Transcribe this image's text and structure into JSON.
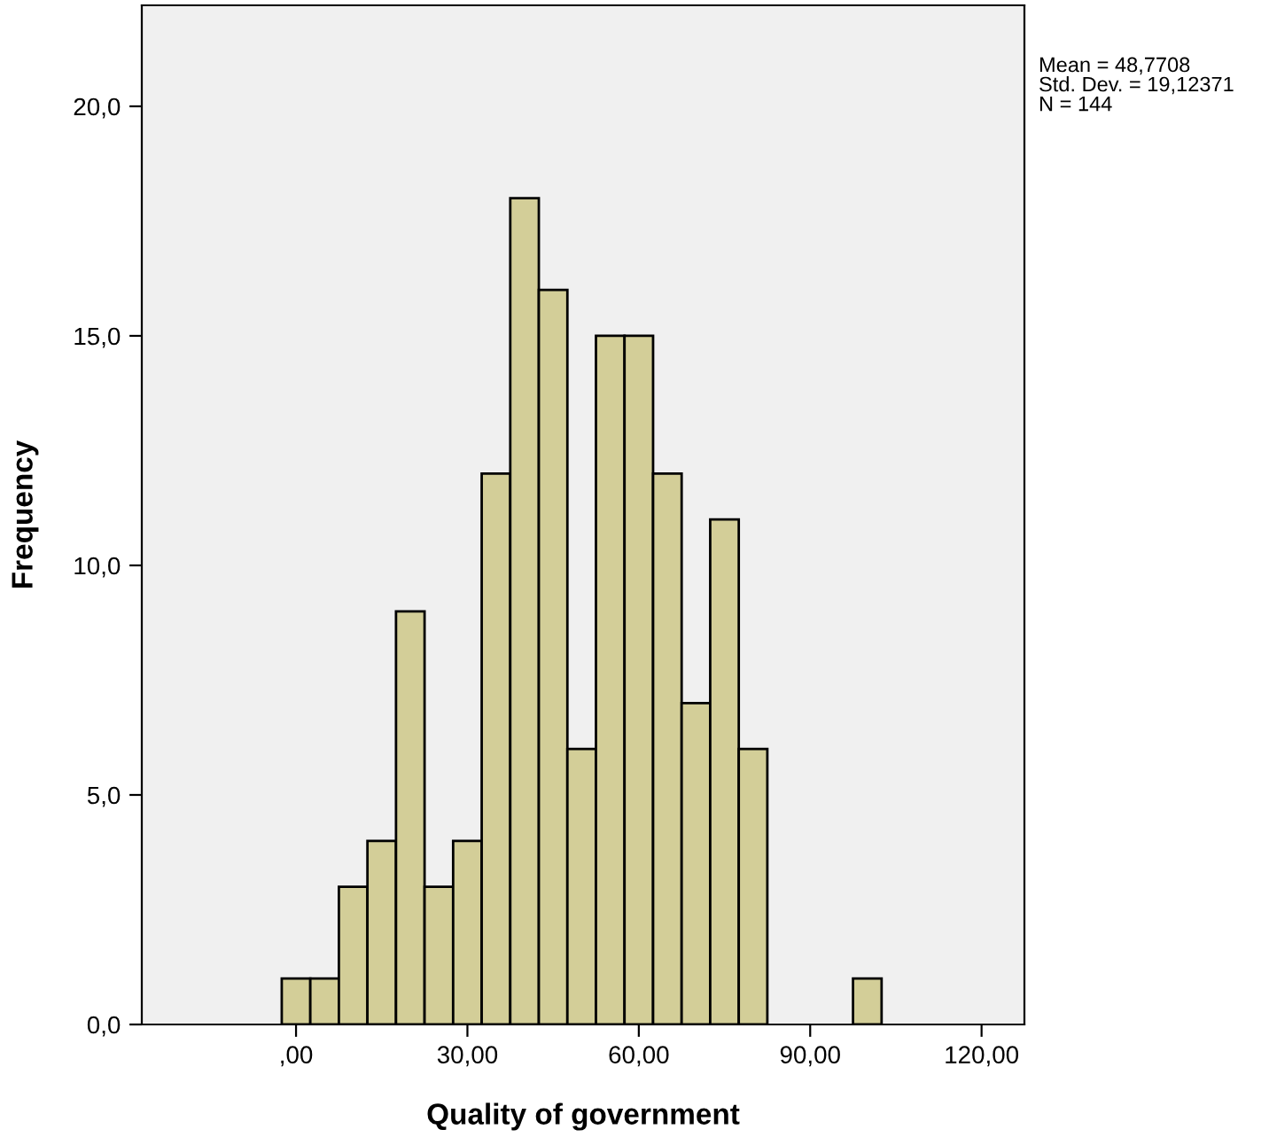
{
  "chart_data": {
    "type": "histogram",
    "xlabel": "Quality of government",
    "ylabel": "Frequency",
    "bins": [
      -2.5,
      2.5,
      7.5,
      12.5,
      17.5,
      22.5,
      27.5,
      32.5,
      37.5,
      42.5,
      47.5,
      52.5,
      57.5,
      62.5,
      67.5,
      72.5,
      77.5,
      82.5,
      87.5,
      92.5,
      97.5,
      102.5
    ],
    "values": [
      1,
      1,
      3,
      4,
      9,
      3,
      4,
      12,
      18,
      16,
      6,
      15,
      15,
      12,
      7,
      11,
      6,
      0,
      0,
      0,
      1
    ],
    "color": "#d3ce98",
    "xlim": [
      -27,
      127.5
    ],
    "ylim": [
      0,
      22.2
    ],
    "xticks": [
      {
        "value": 0,
        "label": ",00"
      },
      {
        "value": 30,
        "label": "30,00"
      },
      {
        "value": 60,
        "label": "60,00"
      },
      {
        "value": 90,
        "label": "90,00"
      },
      {
        "value": 120,
        "label": "120,00"
      }
    ],
    "yticks": [
      {
        "value": 0,
        "label": "0,0"
      },
      {
        "value": 5,
        "label": "5,0"
      },
      {
        "value": 10,
        "label": "10,0"
      },
      {
        "value": 15,
        "label": "15,0"
      },
      {
        "value": 20,
        "label": "20,0"
      }
    ],
    "grid": false,
    "annotations": [
      "Mean = 48,7708\nStd. Dev. = 19,12371\nN = 144"
    ]
  }
}
